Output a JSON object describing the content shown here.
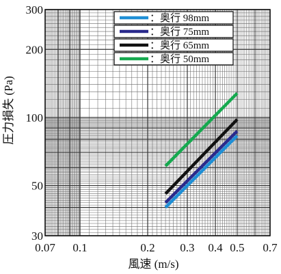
{
  "chart_data": {
    "type": "line",
    "xlabel": "風速 (m/s)",
    "ylabel": "圧力損失 (Pa)",
    "x_scale": "log",
    "y_scale": "log",
    "xlim": [
      0.07,
      0.7
    ],
    "ylim": [
      30,
      300
    ],
    "grid": true,
    "legend_position": "top-right",
    "x_ticks": [
      "0.07",
      "0.1",
      "0.2",
      "0.3",
      "0.4",
      "0.5",
      "0.7"
    ],
    "y_ticks": [
      "30",
      "50",
      "100",
      "200",
      "300"
    ],
    "series": [
      {
        "name": "：奥行 98mm",
        "color": "#1f8fd6",
        "x": [
          0.24,
          0.5
        ],
        "y": [
          40,
          83
        ]
      },
      {
        "name": "：奥行 75mm",
        "color": "#2a2a8c",
        "x": [
          0.24,
          0.5
        ],
        "y": [
          42,
          87
        ]
      },
      {
        "name": "：奥行 65mm",
        "color": "#111111",
        "x": [
          0.24,
          0.5
        ],
        "y": [
          46,
          98
        ]
      },
      {
        "name": "：奥行 50mm",
        "color": "#16a94f",
        "x": [
          0.24,
          0.5
        ],
        "y": [
          61,
          128
        ]
      }
    ]
  }
}
